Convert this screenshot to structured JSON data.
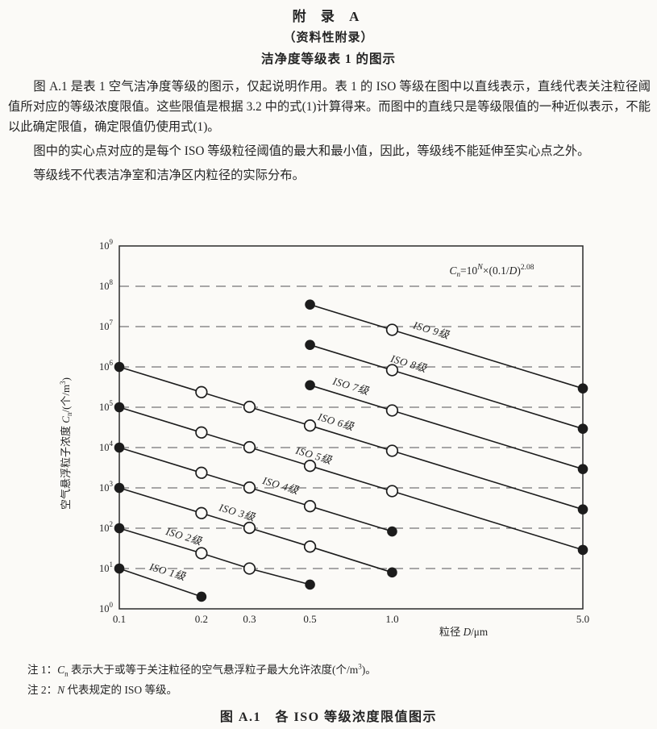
{
  "page": {
    "title": "附 录 A",
    "subtitle": "（资料性附录）",
    "heading": "洁净度等级表 1 的图示",
    "paragraphs": [
      "图 A.1 是表 1 空气洁净度等级的图示，仅起说明作用。表 1 的 ISO 等级在图中以直线表示，直线代表关注粒径阈值所对应的等级浓度限值。这些限值是根据 3.2 中的式(1)计算得来。而图中的直线只是等级限值的一种近似表示，不能以此确定限值，确定限值仍使用式(1)。",
      "图中的实心点对应的是每个 ISO 等级粒径阈值的最大和最小值，因此，等级线不能延伸至实心点之外。",
      "等级线不代表洁净室和洁净区内粒径的实际分布。"
    ],
    "notes": [
      {
        "prefix": "注 1：",
        "italic_var": "C",
        "subscript": "n",
        "body": " 表示大于或等于关注粒径的空气悬浮粒子最大允许浓度(个/m",
        "superscript": "3",
        "suffix": ")。"
      },
      {
        "prefix": "注 2：",
        "italic_var": "N",
        "subscript": "",
        "body": " 代表规定的 ISO 等级。",
        "superscript": "",
        "suffix": ""
      }
    ],
    "caption": "图 A.1　各 ISO 等级浓度限值图示"
  },
  "chart_data": {
    "type": "line",
    "title": "",
    "formula_parts": {
      "lhs": "C",
      "lhs_sub": "n",
      "eq": "=10",
      "sup1": "N",
      "mid": "×(0.1/",
      "var2": "D",
      "close": ")",
      "sup2": "2.08"
    },
    "xlabel_parts": {
      "pre": "粒径 ",
      "var": "D",
      "post": "/μm"
    },
    "ylabel_parts": {
      "pre": "空气悬浮粒子浓度 ",
      "var": "C",
      "sub": "n",
      "mid": "/(个/m",
      "sup": "3",
      "post": ")"
    },
    "xlim": [
      0.1,
      5.0
    ],
    "ylim": [
      1,
      1000000000
    ],
    "x_ticks": [
      {
        "v": 0.1,
        "label": "0.1"
      },
      {
        "v": 0.2,
        "label": "0.2"
      },
      {
        "v": 0.3,
        "label": "0.3"
      },
      {
        "v": 0.5,
        "label": "0.5"
      },
      {
        "v": 1.0,
        "label": "1.0"
      },
      {
        "v": 5.0,
        "label": "5.0"
      }
    ],
    "y_tick_exponents": [
      0,
      1,
      2,
      3,
      4,
      5,
      6,
      7,
      8,
      9
    ],
    "grid": {
      "style": "dashed-horizontal",
      "color": "#757575",
      "on": true
    },
    "legend_position": "inline-rotated-labels",
    "line_color": "#1c1c1c",
    "label_angle_deg": 16.8,
    "series": [
      {
        "name": "ISO 1级",
        "label_at": 0.149,
        "points": [
          [
            0.1,
            10
          ],
          [
            0.2,
            2
          ]
        ]
      },
      {
        "name": "ISO 2级",
        "label_at": 0.171,
        "points": [
          [
            0.1,
            100
          ],
          [
            0.2,
            24
          ],
          [
            0.3,
            10
          ],
          [
            0.5,
            4
          ]
        ]
      },
      {
        "name": "ISO 3级",
        "label_at": 0.268,
        "points": [
          [
            0.1,
            1000
          ],
          [
            0.2,
            237
          ],
          [
            0.3,
            102
          ],
          [
            0.5,
            35
          ],
          [
            1.0,
            8
          ]
        ]
      },
      {
        "name": "ISO 4级",
        "label_at": 0.387,
        "points": [
          [
            0.1,
            10000
          ],
          [
            0.2,
            2370
          ],
          [
            0.3,
            1020
          ],
          [
            0.5,
            352
          ],
          [
            1.0,
            83
          ]
        ]
      },
      {
        "name": "ISO 5级",
        "label_at": 0.512,
        "points": [
          [
            0.1,
            100000
          ],
          [
            0.2,
            23700
          ],
          [
            0.3,
            10200
          ],
          [
            0.5,
            3520
          ],
          [
            1.0,
            832
          ],
          [
            5.0,
            29
          ]
        ]
      },
      {
        "name": "ISO 6级",
        "label_at": 0.617,
        "points": [
          [
            0.1,
            1000000
          ],
          [
            0.2,
            237000
          ],
          [
            0.3,
            102000
          ],
          [
            0.5,
            35200
          ],
          [
            1.0,
            8320
          ],
          [
            5.0,
            293
          ]
        ]
      },
      {
        "name": "ISO 7级",
        "label_at": 0.7,
        "points": [
          [
            0.5,
            352000
          ],
          [
            1.0,
            83200
          ],
          [
            5.0,
            2930
          ]
        ]
      },
      {
        "name": "ISO 8级",
        "label_at": 1.14,
        "points": [
          [
            0.5,
            3520000
          ],
          [
            1.0,
            832000
          ],
          [
            5.0,
            29300
          ]
        ]
      },
      {
        "name": "ISO 9级",
        "label_at": 1.38,
        "points": [
          [
            0.5,
            35200000
          ],
          [
            1.0,
            8320000
          ],
          [
            5.0,
            293000
          ]
        ]
      }
    ]
  }
}
